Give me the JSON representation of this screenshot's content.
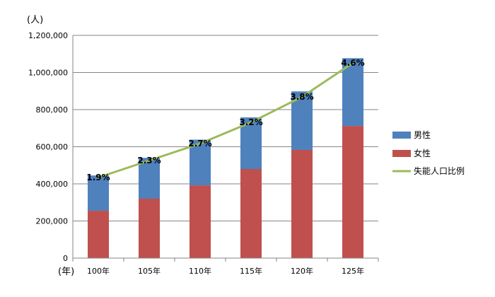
{
  "chart_data": {
    "type": "bar",
    "stacked": true,
    "y_unit_label": "(人)",
    "x_unit_label": "(年)",
    "categories": [
      "100年",
      "105年",
      "110年",
      "115年",
      "120年",
      "125年"
    ],
    "ylim": [
      0,
      1200000
    ],
    "y_ticks": [
      "0",
      "200,000",
      "400,000",
      "600,000",
      "800,000",
      "1,000,000",
      "1,200,000"
    ],
    "grid": true,
    "legend_position": "right",
    "series": [
      {
        "name": "女性",
        "type": "bar",
        "color": "#c0504d",
        "values": [
          255000,
          320000,
          392000,
          480000,
          583000,
          712000
        ]
      },
      {
        "name": "男性",
        "type": "bar",
        "color": "#4f81bd",
        "values": [
          190000,
          220000,
          246000,
          278000,
          315000,
          365000
        ]
      },
      {
        "name": "失能人口比例",
        "type": "line",
        "color": "#9bbb59",
        "values": [
          1.9,
          2.3,
          2.7,
          3.2,
          3.8,
          4.6
        ],
        "labels": [
          "1.9%",
          "2.3%",
          "2.7%",
          "3.2%",
          "3.8%",
          "4.6%"
        ],
        "secondary_range": [
          0,
          5.25
        ]
      }
    ]
  }
}
